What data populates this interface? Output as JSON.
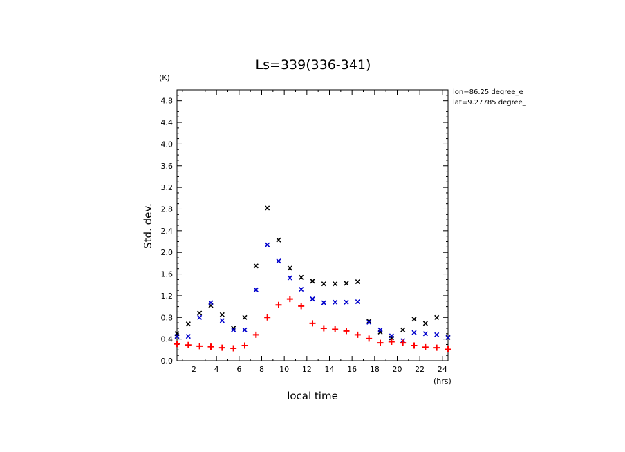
{
  "chart_data": {
    "type": "scatter",
    "title": "Ls=339(336-341)",
    "xlabel": "local time",
    "ylabel": "Std. dev.",
    "x_unit": "(hrs)",
    "y_unit": "(K)",
    "xlim": [
      0.5,
      24.5
    ],
    "ylim": [
      0,
      5.0
    ],
    "xticks": [
      2,
      4,
      6,
      8,
      10,
      12,
      14,
      16,
      18,
      20,
      22,
      24
    ],
    "yticks": [
      0.0,
      0.4,
      0.8,
      1.2,
      1.6,
      2.0,
      2.4,
      2.8,
      3.2,
      3.6,
      4.0,
      4.4,
      4.8
    ],
    "grid": false,
    "annotations": [
      "lon=86.25 degree_e",
      "lat=9.27785 degree_"
    ],
    "series": [
      {
        "marker": "x",
        "color": "#000000",
        "x": [
          0.5,
          1.5,
          2.5,
          3.5,
          4.5,
          5.5,
          6.5,
          7.5,
          8.5,
          9.5,
          10.5,
          11.5,
          12.5,
          13.5,
          14.5,
          15.5,
          16.5,
          17.5,
          18.5,
          19.5,
          20.5,
          21.5,
          22.5,
          23.5,
          24.5
        ],
        "values": [
          0.5,
          0.68,
          0.88,
          1.02,
          0.85,
          0.6,
          0.8,
          1.75,
          2.82,
          2.23,
          1.71,
          1.54,
          1.47,
          1.42,
          1.42,
          1.43,
          1.46,
          0.73,
          0.53,
          0.42,
          0.57,
          0.77,
          0.69,
          0.8,
          0.43
        ]
      },
      {
        "marker": "x",
        "color": "#0000cc",
        "x": [
          0.5,
          1.5,
          2.5,
          3.5,
          4.5,
          5.5,
          6.5,
          7.5,
          8.5,
          9.5,
          10.5,
          11.5,
          12.5,
          13.5,
          14.5,
          15.5,
          16.5,
          17.5,
          18.5,
          19.5,
          20.5,
          21.5,
          22.5,
          23.5,
          24.5
        ],
        "values": [
          0.45,
          0.45,
          0.8,
          1.07,
          0.74,
          0.57,
          0.57,
          1.31,
          2.14,
          1.84,
          1.53,
          1.32,
          1.14,
          1.07,
          1.08,
          1.08,
          1.09,
          0.71,
          0.57,
          0.46,
          0.37,
          0.52,
          0.5,
          0.48,
          0.43
        ]
      },
      {
        "marker": "+",
        "color": "#ff0000",
        "x": [
          0.5,
          1.5,
          2.5,
          3.5,
          4.5,
          5.5,
          6.5,
          7.5,
          8.5,
          9.5,
          10.5,
          11.5,
          12.5,
          13.5,
          14.5,
          15.5,
          16.5,
          17.5,
          18.5,
          19.5,
          20.5,
          21.5,
          22.5,
          23.5,
          24.5
        ],
        "values": [
          0.31,
          0.29,
          0.27,
          0.26,
          0.24,
          0.23,
          0.28,
          0.48,
          0.8,
          1.03,
          1.14,
          1.01,
          0.69,
          0.6,
          0.58,
          0.55,
          0.48,
          0.41,
          0.33,
          0.35,
          0.33,
          0.28,
          0.25,
          0.24,
          0.21
        ]
      }
    ]
  }
}
